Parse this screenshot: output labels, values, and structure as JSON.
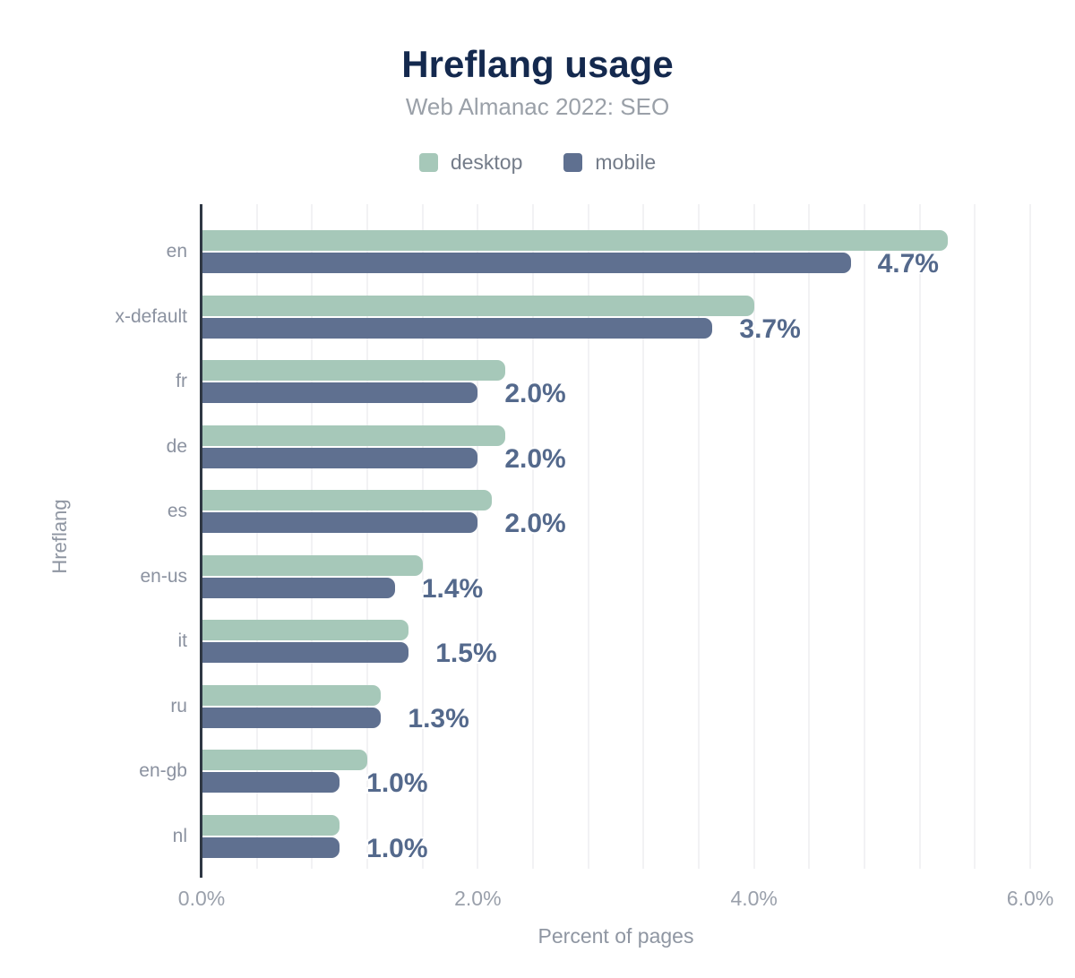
{
  "header": {
    "title": "Hreflang usage",
    "subtitle": "Web Almanac 2022: SEO"
  },
  "chart_data": {
    "type": "bar",
    "orientation": "horizontal",
    "title": "Hreflang usage",
    "subtitle": "Web Almanac 2022: SEO",
    "categories": [
      "en",
      "x-default",
      "fr",
      "de",
      "es",
      "en-us",
      "it",
      "ru",
      "en-gb",
      "nl"
    ],
    "series": [
      {
        "name": "desktop",
        "color": "#a6c8b9",
        "values": [
          5.4,
          4.0,
          2.2,
          2.2,
          2.1,
          1.6,
          1.5,
          1.3,
          1.2,
          1.0
        ]
      },
      {
        "name": "mobile",
        "color": "#5f7090",
        "values": [
          4.7,
          3.7,
          2.0,
          2.0,
          2.0,
          1.4,
          1.5,
          1.3,
          1.0,
          1.0
        ]
      }
    ],
    "value_labels": [
      "4.7%",
      "3.7%",
      "2.0%",
      "2.0%",
      "2.0%",
      "1.4%",
      "1.5%",
      "1.3%",
      "1.0%",
      "1.0%"
    ],
    "value_labels_series": "mobile",
    "xlabel": "Percent of pages",
    "ylabel": "Hreflang",
    "xlim": [
      0,
      6
    ],
    "xticks": [
      "0.0%",
      "2.0%",
      "4.0%",
      "6.0%"
    ],
    "xtick_values": [
      0,
      2,
      4,
      6
    ],
    "grid": true,
    "grid_interval": 0.4,
    "legend_position": "top",
    "colors": {
      "title": "#14294e",
      "subtitle": "#9aa0a8",
      "axis_line": "#2f3844",
      "gridline": "#f2f2f4",
      "value_label": "#54698c",
      "tick_label": "#9aa0ab",
      "category_label": "#8b92a0",
      "background": "#ffffff"
    }
  }
}
